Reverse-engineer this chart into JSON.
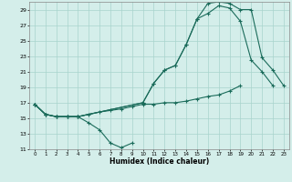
{
  "title": "",
  "xlabel": "Humidex (Indice chaleur)",
  "ylabel": "",
  "bg_color": "#d4eeea",
  "grid_color": "#a8d4cc",
  "line_color": "#1a6b5a",
  "xlim": [
    -0.5,
    23.5
  ],
  "ylim": [
    11,
    30
  ],
  "yticks": [
    11,
    13,
    15,
    17,
    19,
    21,
    23,
    25,
    27,
    29
  ],
  "xticks": [
    0,
    1,
    2,
    3,
    4,
    5,
    6,
    7,
    8,
    9,
    10,
    11,
    12,
    13,
    14,
    15,
    16,
    17,
    18,
    19,
    20,
    21,
    22,
    23
  ],
  "series": [
    {
      "x": [
        0,
        1,
        2,
        3,
        4,
        5,
        6,
        7,
        8,
        9
      ],
      "y": [
        16.8,
        15.5,
        15.2,
        15.2,
        15.2,
        14.4,
        13.5,
        11.8,
        11.2,
        11.8
      ]
    },
    {
      "x": [
        0,
        1,
        2,
        3,
        4,
        5,
        6,
        7,
        8,
        9,
        10,
        11,
        12,
        13,
        14,
        15,
        16,
        17,
        18,
        19
      ],
      "y": [
        16.8,
        15.5,
        15.2,
        15.2,
        15.2,
        15.5,
        15.8,
        16.0,
        16.2,
        16.5,
        16.8,
        16.8,
        17.0,
        17.0,
        17.2,
        17.5,
        17.8,
        18.0,
        18.5,
        19.2
      ]
    },
    {
      "x": [
        0,
        1,
        2,
        3,
        4,
        10,
        11,
        12,
        13,
        14,
        15,
        16,
        17,
        18,
        19,
        20,
        21,
        22
      ],
      "y": [
        16.8,
        15.5,
        15.2,
        15.2,
        15.2,
        17.0,
        19.5,
        21.2,
        21.8,
        24.5,
        27.8,
        28.5,
        29.5,
        29.2,
        27.5,
        22.5,
        21.0,
        19.2
      ]
    },
    {
      "x": [
        0,
        1,
        2,
        3,
        4,
        10,
        11,
        12,
        13,
        14,
        15,
        16,
        17,
        18,
        19,
        20,
        21,
        22,
        23
      ],
      "y": [
        16.8,
        15.5,
        15.2,
        15.2,
        15.2,
        17.0,
        19.5,
        21.2,
        21.8,
        24.5,
        27.8,
        29.8,
        30.0,
        29.8,
        29.0,
        29.0,
        22.8,
        21.2,
        19.2
      ]
    }
  ]
}
